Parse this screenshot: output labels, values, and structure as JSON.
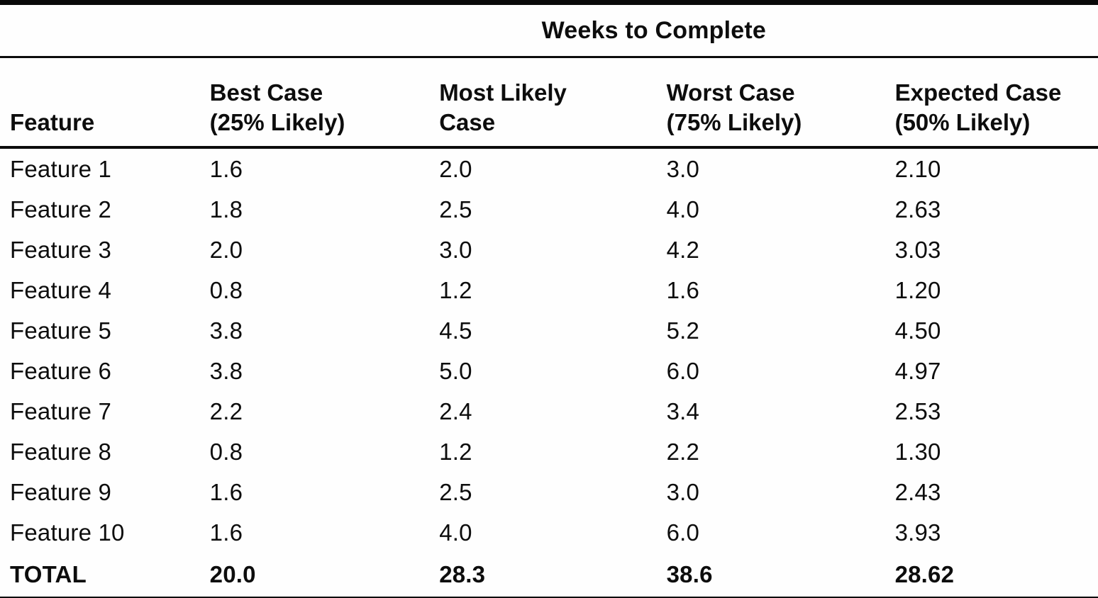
{
  "table": {
    "spanner": "Weeks to Complete",
    "columns": [
      {
        "label": "Feature",
        "sub": ""
      },
      {
        "label": "Best Case",
        "sub": "(25% Likely)"
      },
      {
        "label": "Most Likely",
        "sub": "Case"
      },
      {
        "label": "Worst Case",
        "sub": "(75% Likely)"
      },
      {
        "label": "Expected Case",
        "sub": "(50% Likely)"
      }
    ],
    "rows": [
      {
        "feature": "Feature 1",
        "best": "1.6",
        "likely": "2.0",
        "worst": "3.0",
        "expected": "2.10"
      },
      {
        "feature": "Feature 2",
        "best": "1.8",
        "likely": "2.5",
        "worst": "4.0",
        "expected": "2.63"
      },
      {
        "feature": "Feature 3",
        "best": "2.0",
        "likely": "3.0",
        "worst": "4.2",
        "expected": "3.03"
      },
      {
        "feature": "Feature 4",
        "best": "0.8",
        "likely": "1.2",
        "worst": "1.6",
        "expected": "1.20"
      },
      {
        "feature": "Feature 5",
        "best": "3.8",
        "likely": "4.5",
        "worst": "5.2",
        "expected": "4.50"
      },
      {
        "feature": "Feature 6",
        "best": "3.8",
        "likely": "5.0",
        "worst": "6.0",
        "expected": "4.97"
      },
      {
        "feature": "Feature 7",
        "best": "2.2",
        "likely": "2.4",
        "worst": "3.4",
        "expected": "2.53"
      },
      {
        "feature": "Feature 8",
        "best": "0.8",
        "likely": "1.2",
        "worst": "2.2",
        "expected": "1.30"
      },
      {
        "feature": "Feature 9",
        "best": "1.6",
        "likely": "2.5",
        "worst": "3.0",
        "expected": "2.43"
      },
      {
        "feature": "Feature 10",
        "best": "1.6",
        "likely": "4.0",
        "worst": "6.0",
        "expected": "3.93"
      }
    ],
    "total": {
      "feature": "TOTAL",
      "best": "20.0",
      "likely": "28.3",
      "worst": "38.6",
      "expected": "28.62"
    }
  },
  "chart_data": {
    "type": "table",
    "title": "Weeks to Complete",
    "columns": [
      "Feature",
      "Best Case (25% Likely)",
      "Most Likely Case",
      "Worst Case (75% Likely)",
      "Expected Case (50% Likely)"
    ],
    "rows": [
      [
        "Feature 1",
        1.6,
        2.0,
        3.0,
        2.1
      ],
      [
        "Feature 2",
        1.8,
        2.5,
        4.0,
        2.63
      ],
      [
        "Feature 3",
        2.0,
        3.0,
        4.2,
        3.03
      ],
      [
        "Feature 4",
        0.8,
        1.2,
        1.6,
        1.2
      ],
      [
        "Feature 5",
        3.8,
        4.5,
        5.2,
        4.5
      ],
      [
        "Feature 6",
        3.8,
        5.0,
        6.0,
        4.97
      ],
      [
        "Feature 7",
        2.2,
        2.4,
        3.4,
        2.53
      ],
      [
        "Feature 8",
        0.8,
        1.2,
        2.2,
        1.3
      ],
      [
        "Feature 9",
        1.6,
        2.5,
        3.0,
        2.43
      ],
      [
        "Feature 10",
        1.6,
        4.0,
        6.0,
        3.93
      ],
      [
        "TOTAL",
        20.0,
        28.3,
        38.6,
        28.62
      ]
    ],
    "colors": {
      "text": "#0d0d0d",
      "background": "#fefefe",
      "rule": "#090909"
    }
  }
}
